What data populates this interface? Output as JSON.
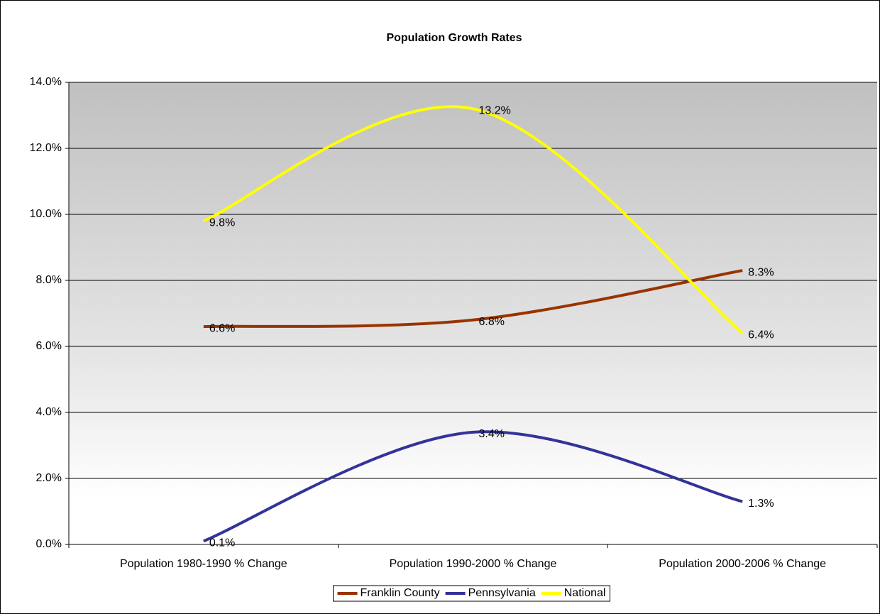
{
  "chart_data": {
    "type": "line",
    "title": "Population Growth Rates",
    "categories": [
      "Population 1980-1990 % Change",
      "Population 1990-2000 % Change",
      "Population 2000-2006 % Change"
    ],
    "series": [
      {
        "name": "Franklin County",
        "color": "#993300",
        "values": [
          6.6,
          6.8,
          8.3
        ],
        "value_labels": [
          "6.6%",
          "6.8%",
          "8.3%"
        ]
      },
      {
        "name": "Pennsylvania",
        "color": "#333399",
        "values": [
          0.1,
          3.4,
          1.3
        ],
        "value_labels": [
          "0.1%",
          "3.4%",
          "1.3%"
        ]
      },
      {
        "name": "National",
        "color": "#ffff00",
        "values": [
          9.8,
          13.2,
          6.4
        ],
        "value_labels": [
          "9.8%",
          "13.2%",
          "6.4%"
        ]
      }
    ],
    "ylim": [
      0,
      14
    ],
    "yticks": [
      {
        "value": 0,
        "label": "0.0%"
      },
      {
        "value": 2,
        "label": "2.0%"
      },
      {
        "value": 4,
        "label": "4.0%"
      },
      {
        "value": 6,
        "label": "6.0%"
      },
      {
        "value": 8,
        "label": "8.0%"
      },
      {
        "value": 10,
        "label": "10.0%"
      },
      {
        "value": 12,
        "label": "12.0%"
      },
      {
        "value": 14,
        "label": "14.0%"
      }
    ],
    "grid": true,
    "smooth": true,
    "legend": "bottom"
  }
}
